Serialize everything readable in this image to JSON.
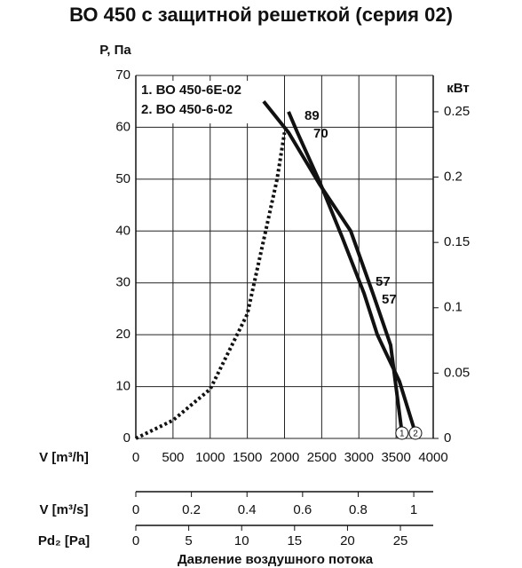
{
  "chart_data": {
    "type": "line",
    "title": "ВО 450 с защитной решеткой (серия 02)",
    "ylabel": "P, Па",
    "y2label": "кВт",
    "xlabel": "V [m³/h]",
    "bottom_title": "Давление воздушного потока",
    "xlim": [
      0,
      4000
    ],
    "xticks": [
      0,
      500,
      1000,
      1500,
      2000,
      2500,
      3000,
      3500,
      4000
    ],
    "ylim": [
      0,
      70
    ],
    "yticks": [
      0,
      10,
      20,
      30,
      40,
      50,
      60,
      70
    ],
    "y2lim": [
      0,
      0.2778
    ],
    "y2ticks": [
      0,
      0.05,
      0.1,
      0.15,
      0.2,
      0.25
    ],
    "grid": true,
    "series": [
      {
        "name": "1. ВО 450-6Е-02",
        "color": "#111111",
        "style": "solid",
        "end_label": "1",
        "x": [
          1719,
          2054,
          2472,
          2890,
          3188,
          3427,
          3580
        ],
        "values": [
          65,
          59,
          49,
          40,
          28,
          18,
          1
        ]
      },
      {
        "name": "2. ВО 450-6-02",
        "color": "#111111",
        "style": "solid",
        "end_label": "2",
        "x": [
          2054,
          2173,
          2472,
          2770,
          3069,
          3248,
          3546,
          3761
        ],
        "values": [
          63,
          59,
          49.5,
          39,
          28,
          20,
          11,
          1
        ]
      },
      {
        "color": "#111111",
        "style": "dotted",
        "x": [
          0,
          500,
          1000,
          1500,
          1900,
          2000
        ],
        "values": [
          0,
          3.5,
          9.5,
          24,
          50,
          59
        ]
      }
    ],
    "annotations": [
      "89",
      "70",
      "57",
      "57"
    ],
    "secondary_axes": [
      {
        "label": "V [m³/s]",
        "xlim": [
          0,
          1.07
        ],
        "xticks": [
          0,
          0.2,
          0.4,
          0.6,
          0.8,
          1
        ]
      },
      {
        "label": "Pd₂ [Pa]",
        "xlim": [
          0,
          28.1
        ],
        "xticks": [
          0,
          5,
          10,
          15,
          20,
          25
        ]
      }
    ]
  }
}
